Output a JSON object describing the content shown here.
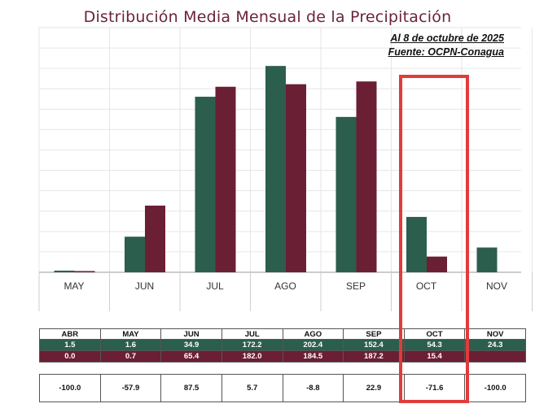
{
  "header": {
    "title": "Distribución Media Mensual de la Precipitación",
    "date_note": "Al 8 de octubre de 2025",
    "source_note": "Fuente: OCPN-Conagua"
  },
  "colors": {
    "series_green": "#2c5e4d",
    "series_maroon": "#6b1f34",
    "title": "#6b2438",
    "highlight": "#e23b3b"
  },
  "highlight": {
    "label": "OCT"
  },
  "chart_data": {
    "type": "bar",
    "title": "Distribución Media Mensual de la Precipitación",
    "xlabel": "",
    "ylabel": "",
    "ylim": [
      0,
      240
    ],
    "grid": true,
    "categories": [
      "MAY",
      "JUN",
      "JUL",
      "AGO",
      "SEP",
      "OCT",
      "NOV"
    ],
    "series": [
      {
        "color": "#2c5e4d",
        "values": [
          1.6,
          34.9,
          172.2,
          202.4,
          152.4,
          54.3,
          24.3
        ]
      },
      {
        "color": "#6b1f34",
        "values": [
          0.7,
          65.4,
          182.0,
          184.5,
          187.2,
          15.4,
          null
        ]
      }
    ]
  },
  "table": {
    "headers": [
      "ABR",
      "MAY",
      "JUN",
      "JUL",
      "AGO",
      "SEP",
      "OCT",
      "NOV"
    ],
    "rows": [
      [
        "1.5",
        "1.6",
        "34.9",
        "172.2",
        "202.4",
        "152.4",
        "54.3",
        "24.3"
      ],
      [
        "0.0",
        "0.7",
        "65.4",
        "182.0",
        "184.5",
        "187.2",
        "15.4",
        ""
      ]
    ],
    "anomaly": [
      "-100.0",
      "-57.9",
      "87.5",
      "5.7",
      "-8.8",
      "22.9",
      "-71.6",
      "-100.0"
    ]
  }
}
